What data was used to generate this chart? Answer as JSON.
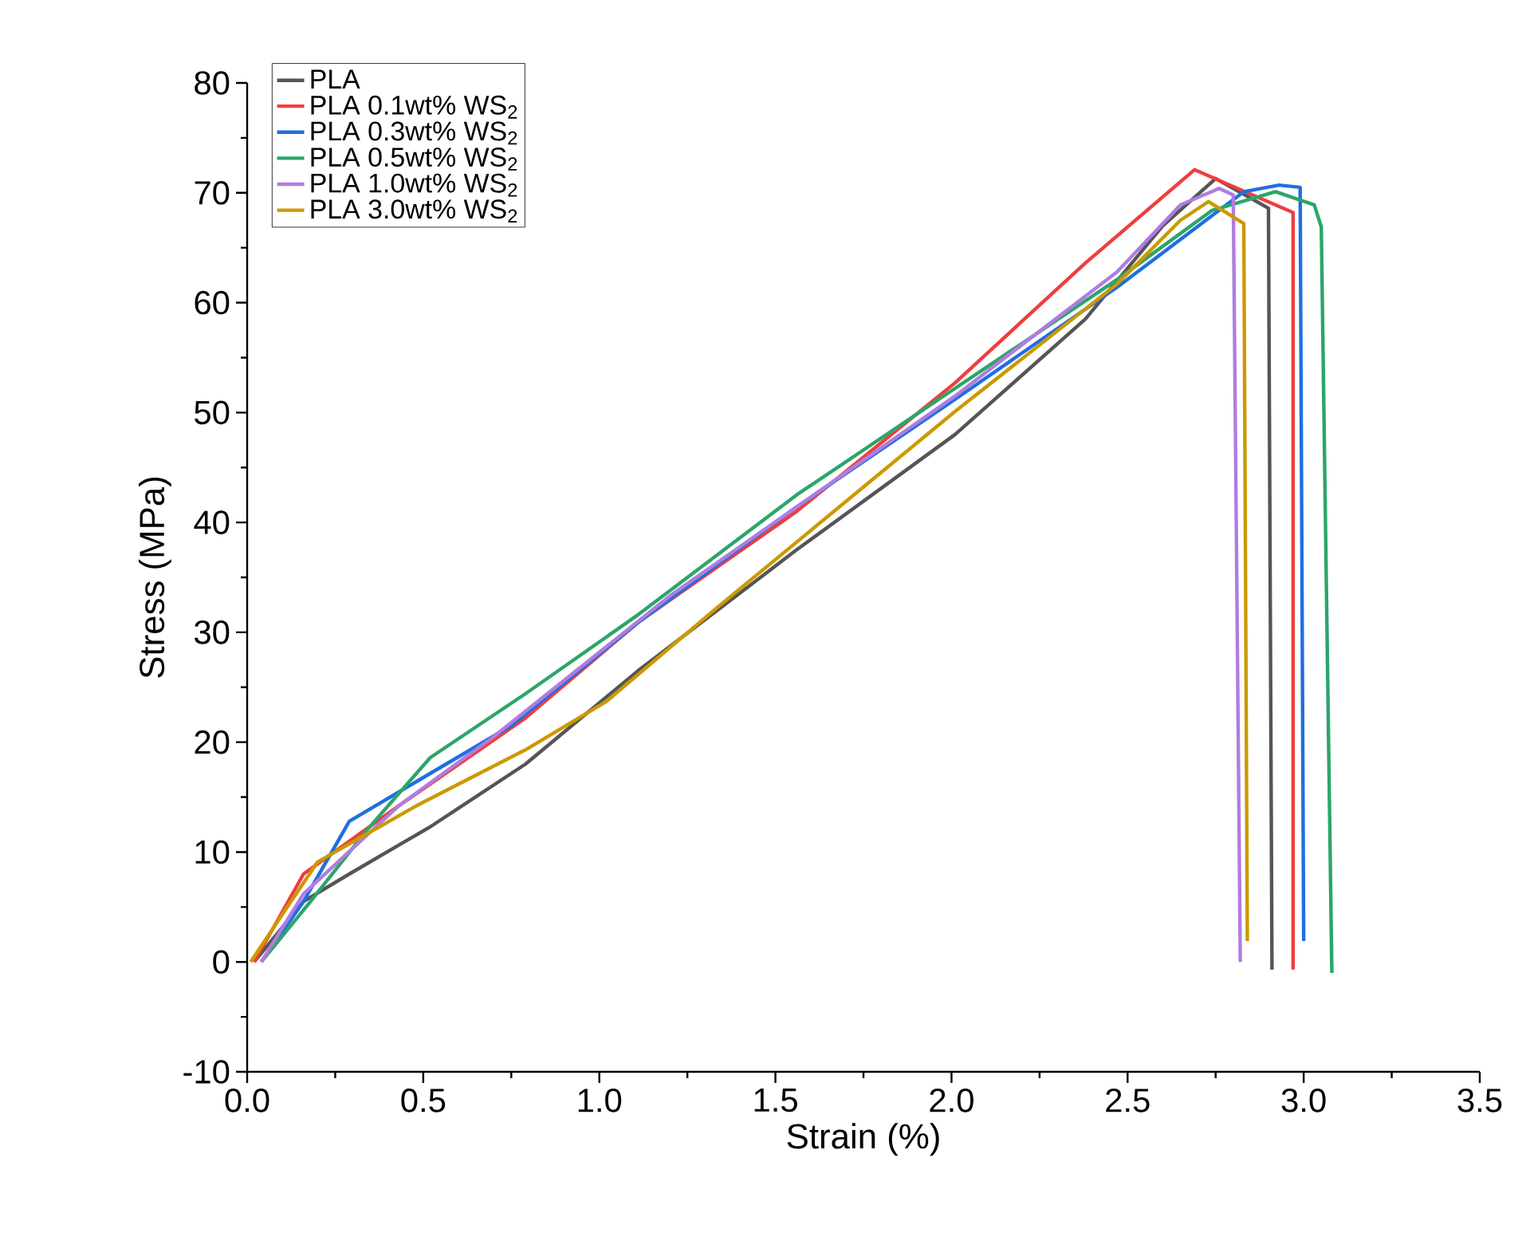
{
  "chart_data": {
    "type": "line",
    "xlabel": "Strain (%)",
    "ylabel": "Stress (MPa)",
    "xlim": [
      0,
      3.5
    ],
    "ylim": [
      -10,
      80
    ],
    "xticks": [
      {
        "value": 0,
        "label": "0.0"
      },
      {
        "value": 0.5,
        "label": "0.5"
      },
      {
        "value": 1,
        "label": "1.0"
      },
      {
        "value": 1.5,
        "label": "1.5"
      },
      {
        "value": 2,
        "label": "2.0"
      },
      {
        "value": 2.5,
        "label": "2.5"
      },
      {
        "value": 3,
        "label": "3.0"
      },
      {
        "value": 3.5,
        "label": "3.5"
      }
    ],
    "yticks": [
      -10,
      0,
      10,
      20,
      30,
      40,
      50,
      60,
      70,
      80
    ],
    "legend": "top left",
    "grid": false,
    "marker": "none",
    "line_style": "solid",
    "series": [
      {
        "name": "PLA",
        "color": "#555555",
        "x": [
          0.02,
          0.16,
          0.29,
          0.52,
          0.79,
          1.11,
          1.56,
          2.01,
          2.38,
          2.6,
          2.75,
          2.9,
          2.91
        ],
        "values": [
          0,
          5.5,
          8,
          12.3,
          18,
          26.5,
          37.5,
          48,
          58.5,
          67,
          71.3,
          68.6,
          -0.7
        ]
      },
      {
        "name": "PLA 0.1wt% WS$_{2}$",
        "color": "#ef3e3e",
        "x": [
          0.02,
          0.16,
          0.43,
          0.79,
          1.11,
          1.56,
          2.01,
          2.38,
          2.69,
          2.97,
          2.97
        ],
        "values": [
          0,
          8,
          14.2,
          22.2,
          30.9,
          41,
          52.7,
          63.6,
          72.1,
          68.2,
          -0.7
        ]
      },
      {
        "name": "PLA 0.3wt% WS$_{2}$",
        "color": "#1f6fe0",
        "x": [
          0.04,
          0.16,
          0.29,
          0.48,
          0.75,
          1.11,
          1.56,
          2.01,
          2.47,
          2.83,
          2.93,
          2.99,
          3.0
        ],
        "values": [
          0,
          5.5,
          12.8,
          16.4,
          21.5,
          30.9,
          41.4,
          51.2,
          61.4,
          70.1,
          70.7,
          70.5,
          1.9
        ]
      },
      {
        "name": "PLA 0.5wt% WS$_{2}$",
        "color": "#2ca56a",
        "x": [
          0.04,
          0.18,
          0.34,
          0.52,
          0.79,
          1.11,
          1.56,
          2.01,
          2.47,
          2.74,
          2.92,
          3.03,
          3.05,
          3.08
        ],
        "values": [
          0,
          5.5,
          12,
          18.6,
          24.4,
          31.6,
          42.5,
          52.2,
          62.1,
          68.4,
          70.1,
          68.9,
          66.9,
          -1
        ]
      },
      {
        "name": "PLA 1.0wt% WS$_{2}$",
        "color": "#b07ce0",
        "x": [
          0.04,
          0.16,
          0.43,
          0.7,
          1.2,
          1.56,
          2.01,
          2.47,
          2.65,
          2.76,
          2.8,
          2.82
        ],
        "values": [
          0,
          6.2,
          14.2,
          20.5,
          33.3,
          41.4,
          51.5,
          62.8,
          68.9,
          70.4,
          69.8,
          0
        ]
      },
      {
        "name": "PLA 3.0wt% WS$_{2}$",
        "color": "#cc9900",
        "x": [
          0.01,
          0.11,
          0.2,
          0.48,
          0.79,
          1.02,
          1.34,
          1.56,
          2.01,
          2.47,
          2.65,
          2.73,
          2.83,
          2.84
        ],
        "values": [
          0,
          4.8,
          9.1,
          14.2,
          19.3,
          23.7,
          32.4,
          38.2,
          50.1,
          61.7,
          67.5,
          69.2,
          67.2,
          1.9
        ]
      }
    ]
  }
}
